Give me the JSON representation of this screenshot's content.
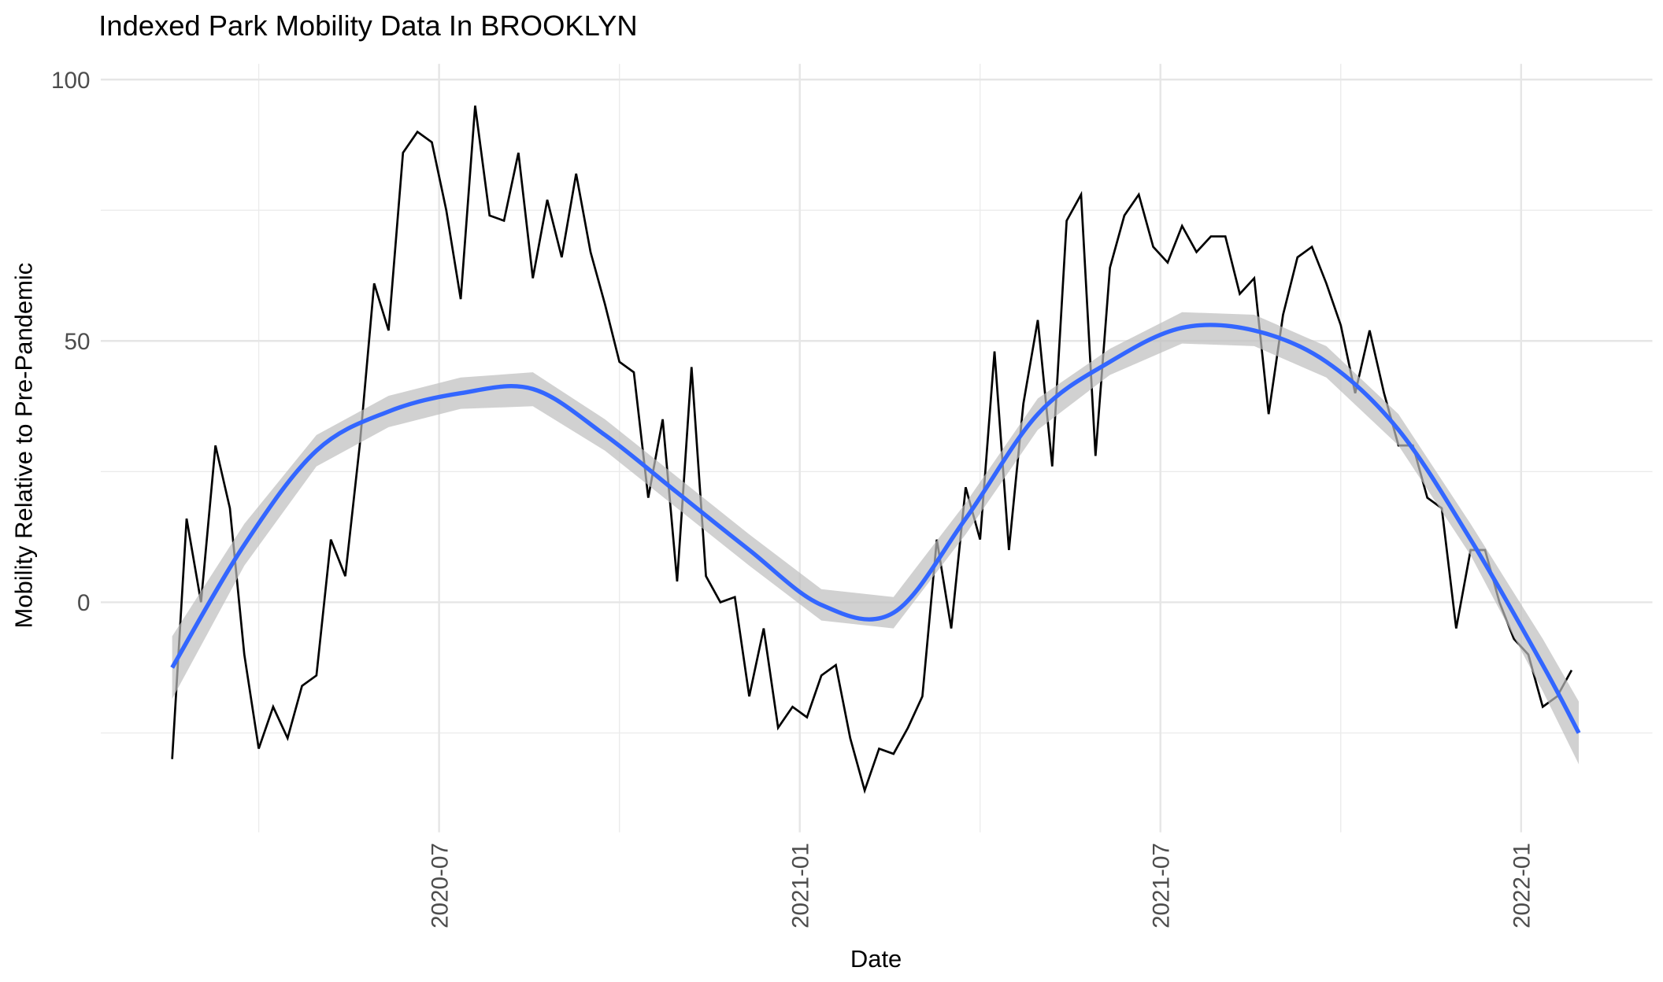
{
  "chart_data": {
    "type": "line",
    "title": "Indexed Park Mobility Data In BROOKLYN",
    "x_label": "Date",
    "y_label": "Mobility Relative to Pre-Pandemic",
    "xlim": [
      2020.031,
      2022.182
    ],
    "xticks": [
      {
        "value": 2020.5,
        "label": "2020-07"
      },
      {
        "value": 2021.0,
        "label": "2021-01"
      },
      {
        "value": 2021.5,
        "label": "2021-07"
      },
      {
        "value": 2022.0,
        "label": "2022-01"
      }
    ],
    "x_minor_ticks": [
      2020.25,
      2020.75,
      2021.25,
      2021.75
    ],
    "ylim": [
      -44,
      103
    ],
    "yticks": [
      0,
      50,
      100
    ],
    "y_minor_ticks": [
      -25,
      25,
      75
    ],
    "grid": true,
    "series": [
      {
        "color": "#000000",
        "x": [
          2020.13,
          2020.15,
          2020.17,
          2020.19,
          2020.21,
          2020.23,
          2020.25,
          2020.27,
          2020.29,
          2020.31,
          2020.33,
          2020.35,
          2020.37,
          2020.39,
          2020.41,
          2020.43,
          2020.45,
          2020.47,
          2020.49,
          2020.51,
          2020.53,
          2020.55,
          2020.57,
          2020.59,
          2020.61,
          2020.63,
          2020.65,
          2020.67,
          2020.69,
          2020.71,
          2020.73,
          2020.75,
          2020.77,
          2020.79,
          2020.81,
          2020.83,
          2020.85,
          2020.87,
          2020.89,
          2020.91,
          2020.93,
          2020.95,
          2020.97,
          2020.99,
          2021.01,
          2021.03,
          2021.05,
          2021.07,
          2021.09,
          2021.11,
          2021.13,
          2021.15,
          2021.17,
          2021.19,
          2021.21,
          2021.23,
          2021.25,
          2021.27,
          2021.29,
          2021.31,
          2021.33,
          2021.35,
          2021.37,
          2021.39,
          2021.41,
          2021.43,
          2021.45,
          2021.47,
          2021.49,
          2021.51,
          2021.53,
          2021.55,
          2021.57,
          2021.59,
          2021.61,
          2021.63,
          2021.65,
          2021.67,
          2021.69,
          2021.71,
          2021.73,
          2021.75,
          2021.77,
          2021.79,
          2021.81,
          2021.83,
          2021.85,
          2021.87,
          2021.89,
          2021.91,
          2021.93,
          2021.95,
          2021.97,
          2021.99,
          2022.01,
          2022.03,
          2022.05,
          2022.07
        ],
        "values": [
          -30,
          16,
          0,
          30,
          18,
          -10,
          -28,
          -20,
          -26,
          -16,
          -14,
          12,
          5,
          30,
          61,
          52,
          86,
          90,
          88,
          75,
          58,
          95,
          74,
          73,
          86,
          62,
          77,
          66,
          82,
          67,
          57,
          46,
          44,
          20,
          35,
          4,
          45,
          5,
          0,
          1,
          -18,
          -5,
          -24,
          -20,
          -22,
          -14,
          -12,
          -26,
          -36,
          -28,
          -29,
          -24,
          -18,
          12,
          -5,
          22,
          12,
          48,
          10,
          38,
          54,
          26,
          73,
          78,
          28,
          64,
          74,
          78,
          68,
          65,
          72,
          67,
          70,
          70,
          59,
          62,
          36,
          55,
          66,
          68,
          61,
          53,
          40,
          52,
          40,
          30,
          30,
          20,
          18,
          -5,
          10,
          10,
          0,
          -7,
          -10,
          -20,
          -18,
          -13
        ]
      }
    ],
    "smooth": {
      "color": "#3366ff",
      "band_color": "#bdbdbd",
      "x": [
        2020.13,
        2020.23,
        2020.33,
        2020.43,
        2020.53,
        2020.63,
        2020.73,
        2020.83,
        2020.93,
        2021.03,
        2021.13,
        2021.23,
        2021.33,
        2021.43,
        2021.53,
        2021.63,
        2021.73,
        2021.83,
        2021.93,
        2022.03,
        2022.08
      ],
      "values": [
        -12.5,
        11,
        29,
        36.5,
        40,
        40.8,
        32,
        21,
        10,
        -0.5,
        -2,
        16,
        36,
        46,
        52.5,
        52,
        46,
        33,
        12,
        -12,
        -25
      ],
      "lower": [
        -18.5,
        7,
        26,
        33.5,
        37,
        37.5,
        29,
        18,
        7,
        -3.5,
        -5,
        13,
        33,
        43.5,
        49.5,
        49,
        43,
        30,
        9,
        -17,
        -31
      ],
      "upper": [
        -6.5,
        15,
        32,
        39.5,
        43,
        44,
        35,
        24,
        13,
        2.5,
        1,
        19,
        39,
        48.5,
        55.5,
        55,
        49,
        36,
        15,
        -7,
        -19
      ]
    }
  }
}
